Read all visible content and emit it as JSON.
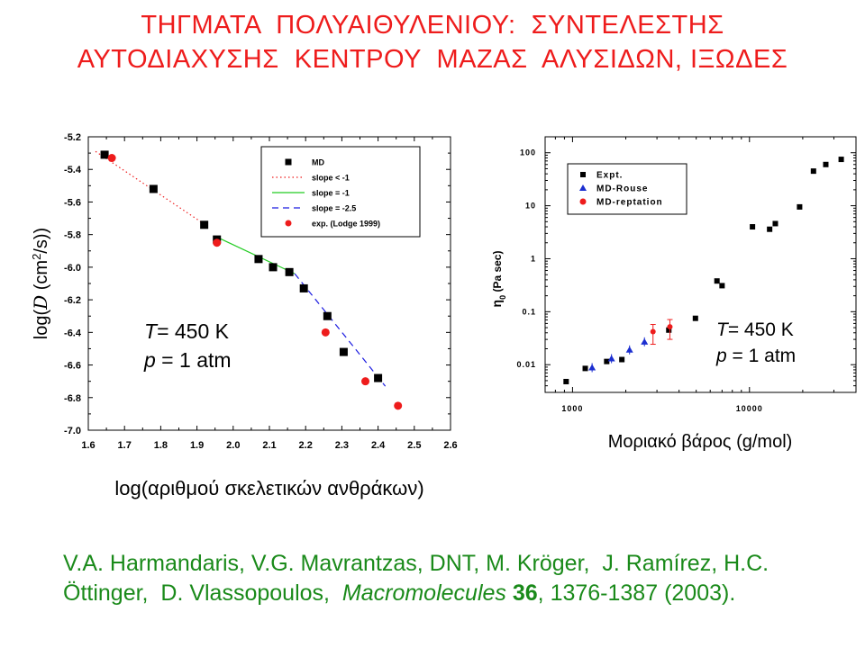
{
  "title": {
    "line1": "ΤΗΓΜΑΤΑ  ΠΟΛΥΑΙΘΥΛΕΝΙΟΥ:  ΣΥΝΤΕΛΕΣΤΗΣ",
    "line2": "ΑΥΤΟΔΙΑΧΥΣΗΣ  ΚΕΝΤΡΟΥ  ΜΑΖΑΣ  ΑΛΥΣΙΔΩΝ, ΙΞΩΔΕΣ"
  },
  "citation": {
    "line1": "V.A. Harmandaris, V.G. Mavrantzas, DNT, M. Kröger,  J. Ramírez, H.C.",
    "line2a": "Öttinger,  D. Vlassopoulos,  ",
    "journal": "Macromolecules",
    "volume": "36",
    "line2b": ", 1376-1387 (2003)."
  },
  "colors": {
    "title": "#ee1c1c",
    "citation": "#1a8a1a",
    "md": "#000000",
    "exp": "#ee1c1c",
    "slope_lt": "#ee1c1c",
    "slope1": "#22cc22",
    "slope25": "#1c1ce0",
    "rouse": "#1c2fd0"
  },
  "chart_data": [
    {
      "type": "scatter",
      "xlabel": "log(αριθμού σκελετικών ανθράκων)",
      "ylabel_prefix": "log(",
      "ylabel_var": "D",
      "ylabel_mid": " (cm",
      "ylabel_sup": "2",
      "ylabel_suffix": "/s))",
      "xlim": [
        1.6,
        2.6
      ],
      "ylim": [
        -7.0,
        -5.2
      ],
      "xticks": [
        "1.6",
        "1.7",
        "1.8",
        "1.9",
        "2.0",
        "2.1",
        "2.2",
        "2.3",
        "2.4",
        "2.5",
        "2.6"
      ],
      "yticks": [
        "-5.2",
        "-5.4",
        "-5.6",
        "-5.8",
        "-6.0",
        "-6.2",
        "-6.4",
        "-6.6",
        "-6.8",
        "-7.0"
      ],
      "legend_position": "top-right",
      "annotation": {
        "T_var": "T",
        "T_val": "=  450 K",
        "p_var": "p",
        "p_val": " =   1 atm"
      },
      "series": [
        {
          "name": "MD",
          "marker": "square",
          "x": [
            1.645,
            1.78,
            1.92,
            1.955,
            2.07,
            2.11,
            2.155,
            2.195,
            2.26,
            2.305,
            2.4
          ],
          "y": [
            -5.31,
            -5.52,
            -5.74,
            -5.83,
            -5.95,
            -6.0,
            -6.03,
            -6.13,
            -6.3,
            -6.52,
            -6.68
          ]
        },
        {
          "name": "slope < -1",
          "style": "dotted",
          "x": [
            1.62,
            1.93
          ],
          "y": [
            -5.29,
            -5.75
          ]
        },
        {
          "name": "slope = -1",
          "style": "solid",
          "x": [
            1.95,
            2.17
          ],
          "y": [
            -5.81,
            -6.04
          ]
        },
        {
          "name": "slope = -2.5",
          "style": "dashed",
          "x": [
            2.17,
            2.42
          ],
          "y": [
            -6.04,
            -6.73
          ]
        },
        {
          "name": "exp. (Lodge 1999)",
          "marker": "circle",
          "x": [
            1.665,
            1.955,
            2.255,
            2.365,
            2.455
          ],
          "y": [
            -5.33,
            -5.85,
            -6.4,
            -6.7,
            -6.85
          ]
        }
      ]
    },
    {
      "type": "scatter",
      "scale": "log-log",
      "xlabel": "Μοριακό βάρος (g/mol)",
      "ylabel": "η",
      "ylabel_sub": "0",
      "ylabel_unit": " (Pa sec)",
      "xlim": [
        700,
        40000
      ],
      "ylim": [
        0.003,
        200
      ],
      "xticks": [
        "1000",
        "10000"
      ],
      "yticks": [
        "100",
        "10",
        "1",
        "0.1",
        "0.01"
      ],
      "legend_position": "top-left",
      "annotation": {
        "T_var": "T",
        "T_val": "=  450 K",
        "p_var": "p",
        "p_val": " =   1 atm"
      },
      "series": [
        {
          "name": "Expt.",
          "marker": "square",
          "x": [
            920,
            1180,
            1560,
            1900,
            3500,
            4950,
            6550,
            7000,
            10400,
            13000,
            14000,
            19200,
            23000,
            27000,
            33000
          ],
          "y": [
            0.0048,
            0.0085,
            0.0115,
            0.0125,
            0.045,
            0.075,
            0.38,
            0.31,
            4.0,
            3.6,
            4.6,
            9.5,
            45,
            60,
            75
          ]
        },
        {
          "name": "MD-Rouse",
          "marker": "triangle",
          "x": [
            1290,
            1660,
            2100,
            2550
          ],
          "y": [
            0.0088,
            0.013,
            0.019,
            0.027
          ]
        },
        {
          "name": "MD-reptation",
          "marker": "circle",
          "x": [
            2850,
            3550
          ],
          "y": [
            0.042,
            0.052
          ]
        }
      ]
    }
  ]
}
